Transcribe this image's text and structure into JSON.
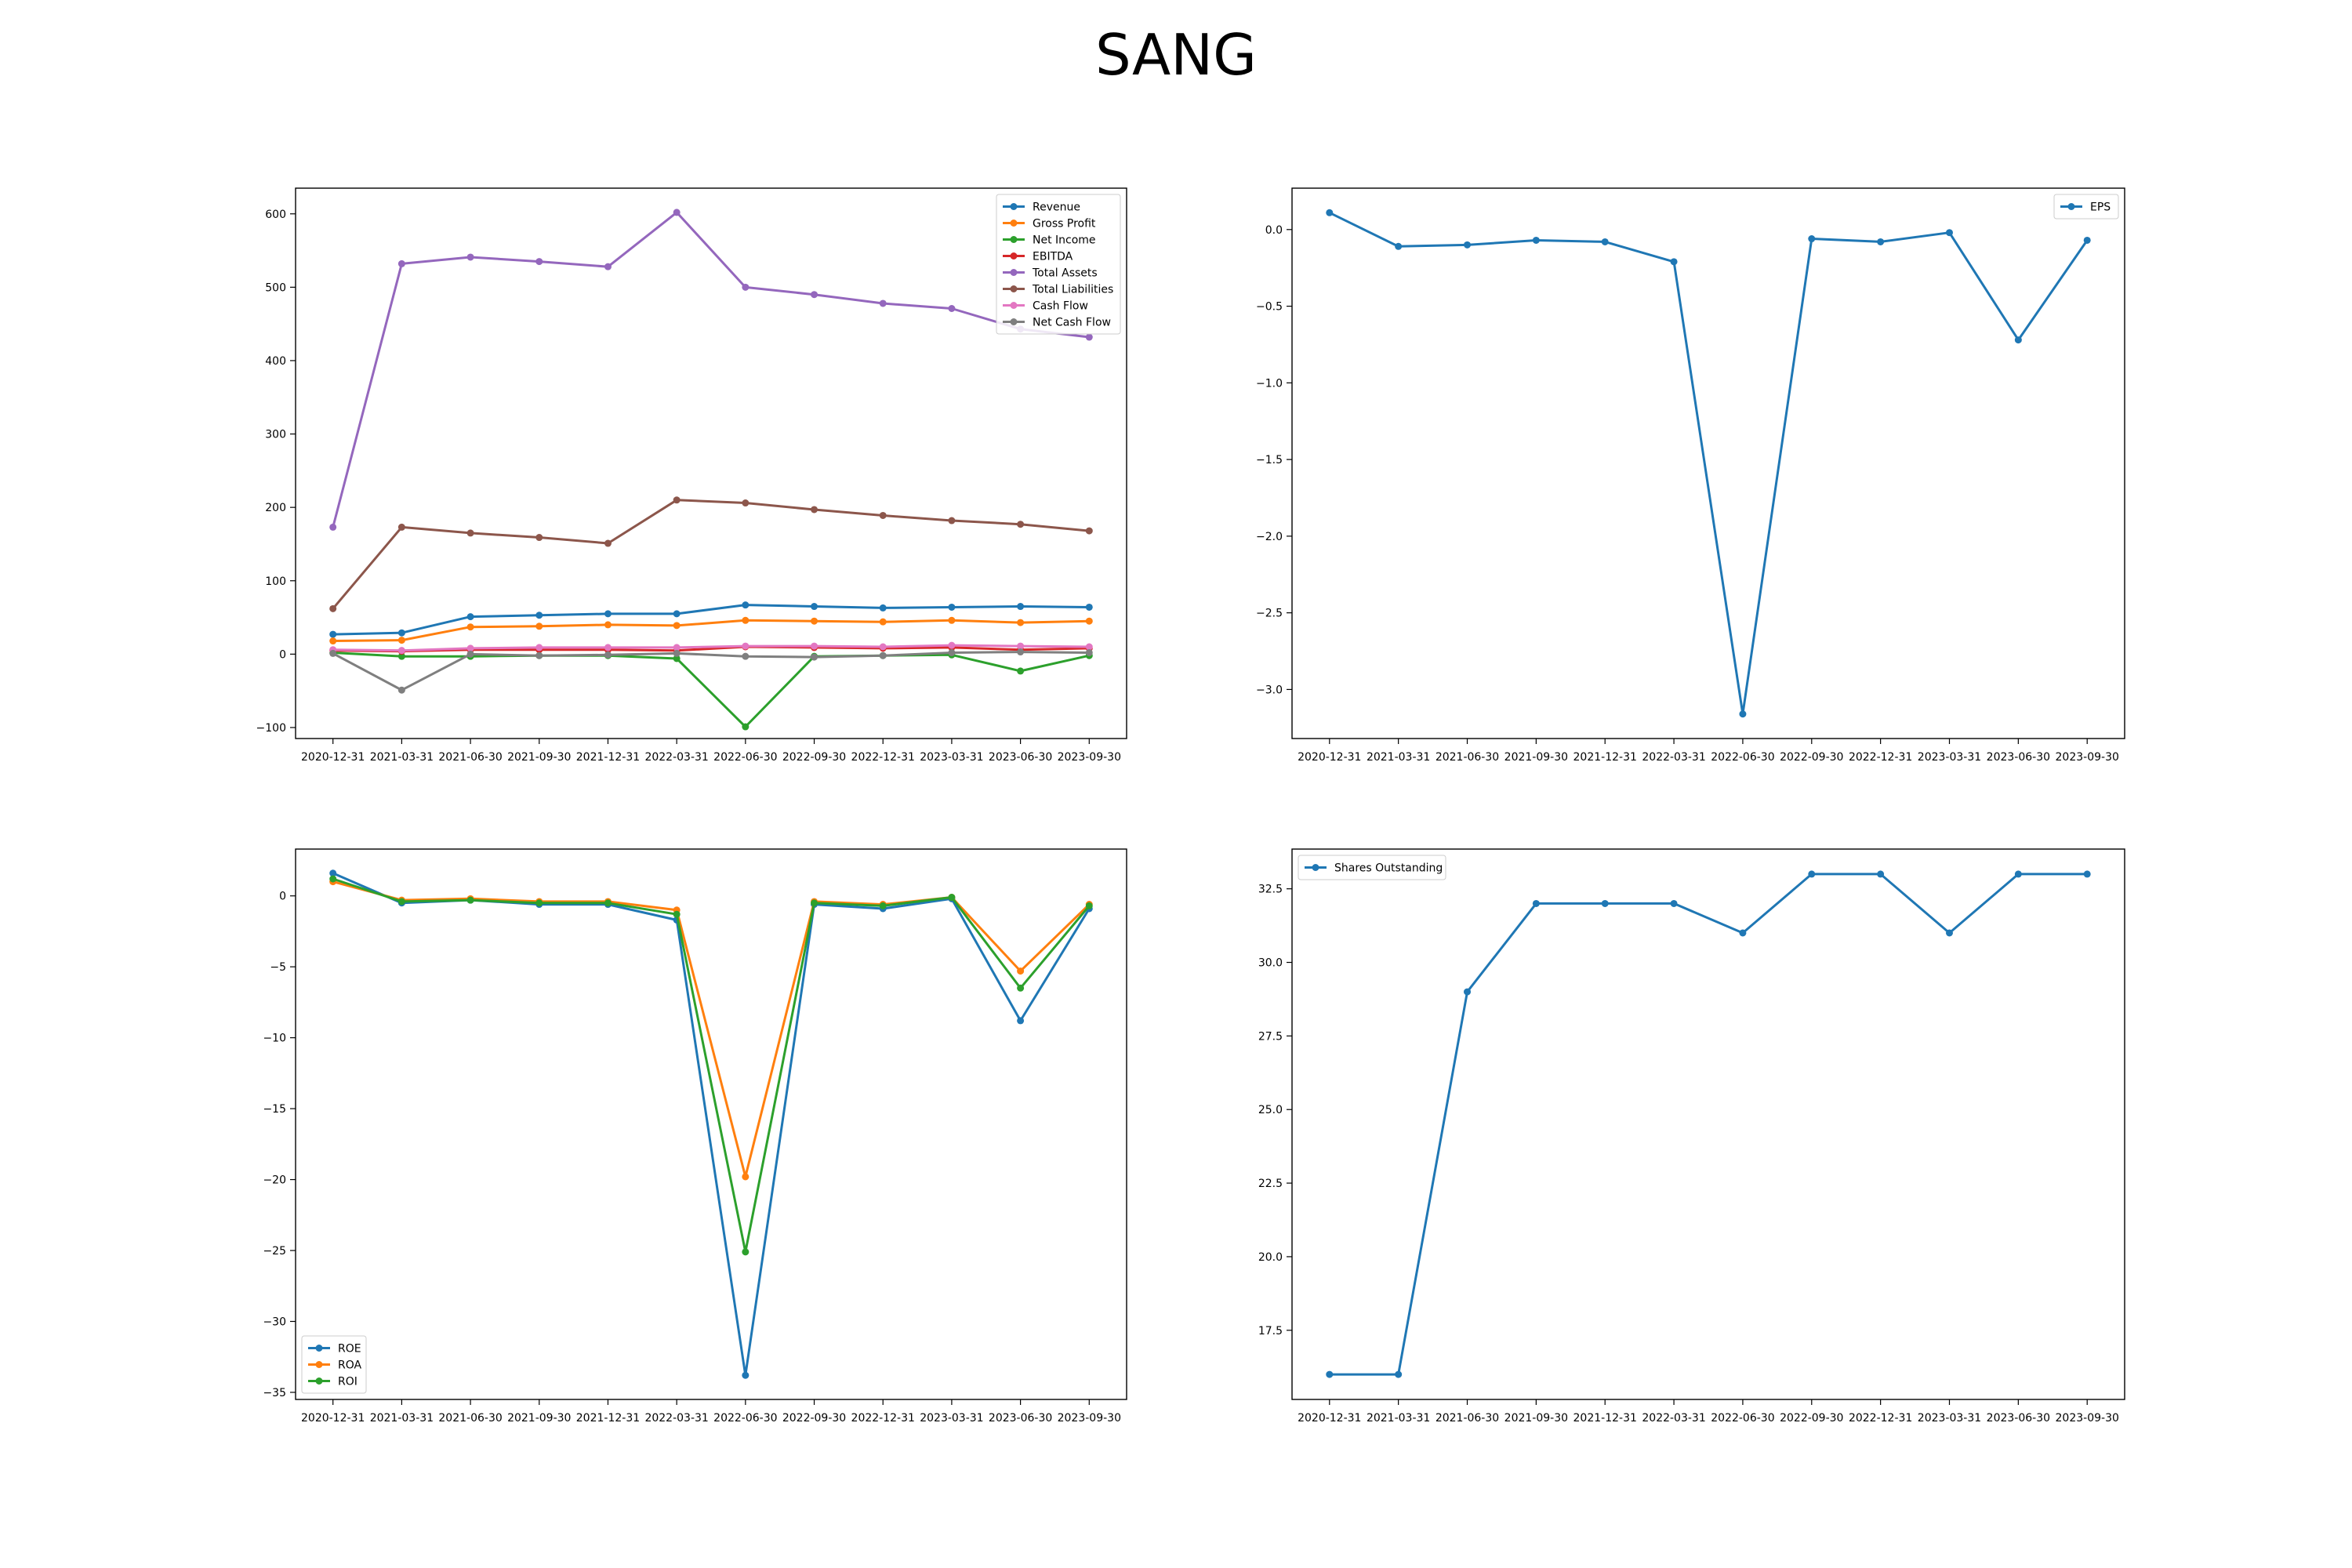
{
  "figure": {
    "title": "SANG"
  },
  "chart_data": [
    {
      "type": "line",
      "x": [
        "2020-12-31",
        "2021-03-31",
        "2021-06-30",
        "2021-09-30",
        "2021-12-31",
        "2022-03-31",
        "2022-06-30",
        "2022-09-30",
        "2022-12-31",
        "2023-03-31",
        "2023-06-30",
        "2023-09-30"
      ],
      "ylim": [
        -115,
        635
      ],
      "yticks": [
        -100,
        0,
        100,
        200,
        300,
        400,
        500,
        600
      ],
      "legend": "top-right",
      "series": [
        {
          "name": "Revenue",
          "color": "#1f77b4",
          "values": [
            27,
            29,
            51,
            53,
            55,
            55,
            67,
            65,
            63,
            64,
            65,
            64
          ]
        },
        {
          "name": "Gross Profit",
          "color": "#ff7f0e",
          "values": [
            18,
            19,
            37,
            38,
            40,
            39,
            46,
            45,
            44,
            46,
            43,
            45
          ]
        },
        {
          "name": "Net Income",
          "color": "#2ca02c",
          "values": [
            2,
            -3,
            -3,
            -2,
            -2,
            -6,
            -99,
            -3,
            -2,
            -1,
            -23,
            -2
          ]
        },
        {
          "name": "EBITDA",
          "color": "#d62728",
          "values": [
            5,
            4,
            6,
            6,
            6,
            5,
            10,
            9,
            8,
            9,
            6,
            8
          ]
        },
        {
          "name": "Total Assets",
          "color": "#9467bd",
          "values": [
            173,
            532,
            541,
            535,
            528,
            602,
            500,
            490,
            478,
            471,
            443,
            432
          ]
        },
        {
          "name": "Total Liabilities",
          "color": "#8c564b",
          "values": [
            62,
            173,
            165,
            159,
            151,
            210,
            206,
            197,
            189,
            182,
            177,
            168
          ]
        },
        {
          "name": "Cash Flow",
          "color": "#e377c2",
          "values": [
            6,
            5,
            8,
            9,
            9,
            9,
            11,
            11,
            10,
            12,
            11,
            10
          ]
        },
        {
          "name": "Net Cash Flow",
          "color": "#7f7f7f",
          "values": [
            1,
            -49,
            0,
            -2,
            -1,
            1,
            -3,
            -4,
            -2,
            2,
            3,
            2
          ]
        }
      ]
    },
    {
      "type": "line",
      "x": [
        "2020-12-31",
        "2021-03-31",
        "2021-06-30",
        "2021-09-30",
        "2021-12-31",
        "2022-03-31",
        "2022-06-30",
        "2022-09-30",
        "2022-12-31",
        "2023-03-31",
        "2023-06-30",
        "2023-09-30"
      ],
      "ylim": [
        -3.32,
        0.27
      ],
      "yticks": [
        -3.0,
        -2.5,
        -2.0,
        -1.5,
        -1.0,
        -0.5,
        0.0
      ],
      "ytick_labels": [
        "−3.0",
        "−2.5",
        "−2.0",
        "−1.5",
        "−1.0",
        "−0.5",
        "0.0"
      ],
      "legend": "top-right",
      "series": [
        {
          "name": "EPS",
          "color": "#1f77b4",
          "values": [
            0.11,
            -0.11,
            -0.1,
            -0.07,
            -0.08,
            -0.21,
            -3.16,
            -0.06,
            -0.08,
            -0.02,
            -0.72,
            -0.07
          ]
        }
      ]
    },
    {
      "type": "line",
      "x": [
        "2020-12-31",
        "2021-03-31",
        "2021-06-30",
        "2021-09-30",
        "2021-12-31",
        "2022-03-31",
        "2022-06-30",
        "2022-09-30",
        "2022-12-31",
        "2023-03-31",
        "2023-06-30",
        "2023-09-30"
      ],
      "ylim": [
        -35.5,
        3.3
      ],
      "yticks": [
        -35,
        -30,
        -25,
        -20,
        -15,
        -10,
        -5,
        0
      ],
      "legend": "bottom-left",
      "series": [
        {
          "name": "ROE",
          "color": "#1f77b4",
          "values": [
            1.6,
            -0.5,
            -0.3,
            -0.6,
            -0.6,
            -1.7,
            -33.8,
            -0.6,
            -0.9,
            -0.2,
            -8.8,
            -0.9
          ]
        },
        {
          "name": "ROA",
          "color": "#ff7f0e",
          "values": [
            1.0,
            -0.3,
            -0.2,
            -0.4,
            -0.4,
            -1.0,
            -19.8,
            -0.4,
            -0.6,
            -0.1,
            -5.3,
            -0.6
          ]
        },
        {
          "name": "ROI",
          "color": "#2ca02c",
          "values": [
            1.2,
            -0.4,
            -0.3,
            -0.5,
            -0.5,
            -1.3,
            -25.1,
            -0.5,
            -0.7,
            -0.1,
            -6.5,
            -0.7
          ]
        }
      ]
    },
    {
      "type": "line",
      "x": [
        "2020-12-31",
        "2021-03-31",
        "2021-06-30",
        "2021-09-30",
        "2021-12-31",
        "2022-03-31",
        "2022-06-30",
        "2022-09-30",
        "2022-12-31",
        "2023-03-31",
        "2023-06-30",
        "2023-09-30"
      ],
      "ylim": [
        15.15,
        33.85
      ],
      "yticks": [
        17.5,
        20.0,
        22.5,
        25.0,
        27.5,
        30.0,
        32.5
      ],
      "legend": "top-left",
      "series": [
        {
          "name": "Shares Outstanding",
          "color": "#1f77b4",
          "values": [
            16,
            16,
            29,
            32,
            32,
            32,
            31,
            33,
            33,
            31,
            33,
            33
          ]
        }
      ]
    }
  ]
}
